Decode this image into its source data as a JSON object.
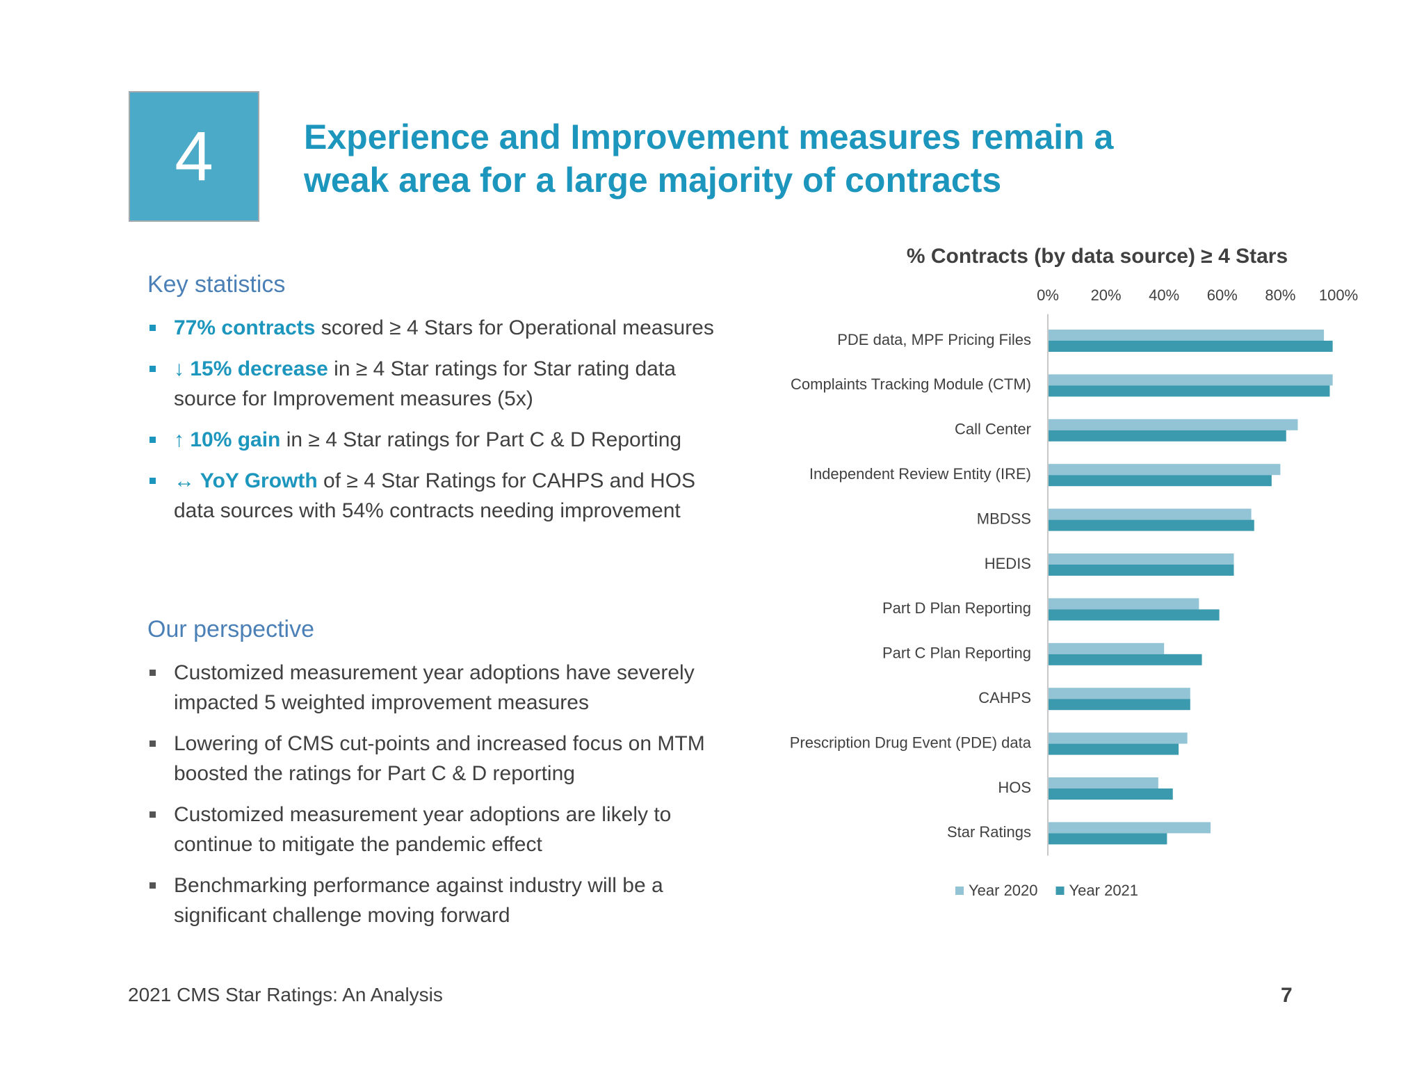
{
  "header": {
    "number": "4",
    "title_lines": [
      "Experience and Improvement measures remain a",
      "weak area for a large majority of contracts"
    ]
  },
  "key_statistics": {
    "heading": "Key statistics",
    "items": [
      {
        "highlight": "77% contracts",
        "text": "scored ≥ 4 Stars for Operational measures"
      },
      {
        "highlight": "↓ 15% decrease",
        "text": "in ≥ 4 Star ratings for Star rating data source for Improvement measures (5x)"
      },
      {
        "highlight": "↑ 10% gain",
        "text": "in ≥ 4 Star ratings for Part C & D Reporting"
      },
      {
        "highlight": "↔ YoY Growth",
        "text": "of ≥  4 Star Ratings for CAHPS and HOS data sources with 54% contracts needing improvement"
      }
    ]
  },
  "perspective": {
    "heading": "Our perspective",
    "items": [
      "Customized measurement year adoptions have severely impacted 5 weighted improvement measures",
      "Lowering of CMS cut-points and increased focus on MTM boosted the ratings for Part C & D reporting",
      "Customized measurement year adoptions are likely to continue to mitigate the pandemic effect",
      "Benchmarking performance against industry will be a significant challenge moving forward"
    ]
  },
  "chart_data": {
    "type": "barh",
    "title": "% Contracts (by data source) ≥ 4 Stars",
    "categories": [
      "PDE data, MPF Pricing Files",
      "Complaints Tracking Module (CTM)",
      "Call Center",
      "Independent Review Entity (IRE)",
      "MBDSS",
      "HEDIS",
      "Part D Plan Reporting",
      "Part C Plan Reporting",
      "CAHPS",
      "Prescription Drug Event (PDE) data",
      "HOS",
      "Star Ratings"
    ],
    "series": [
      {
        "name": "Year 2020",
        "color": "#93c4d5",
        "values": [
          95,
          98,
          86,
          80,
          70,
          64,
          52,
          40,
          49,
          48,
          38,
          56
        ]
      },
      {
        "name": "Year 2021",
        "color": "#3b9aae",
        "values": [
          98,
          97,
          82,
          77,
          71,
          64,
          59,
          53,
          49,
          45,
          43,
          41
        ]
      }
    ],
    "xlim": [
      0,
      100
    ],
    "xticks": [
      {
        "value": 0,
        "label": "0%"
      },
      {
        "value": 20,
        "label": "20%"
      },
      {
        "value": 40,
        "label": "40%"
      },
      {
        "value": 60,
        "label": "60%"
      },
      {
        "value": 80,
        "label": "80%"
      },
      {
        "value": 100,
        "label": "100%"
      }
    ],
    "legend": "bottom"
  },
  "footer": {
    "text": "2021 CMS Star Ratings: An Analysis",
    "page": "7"
  }
}
